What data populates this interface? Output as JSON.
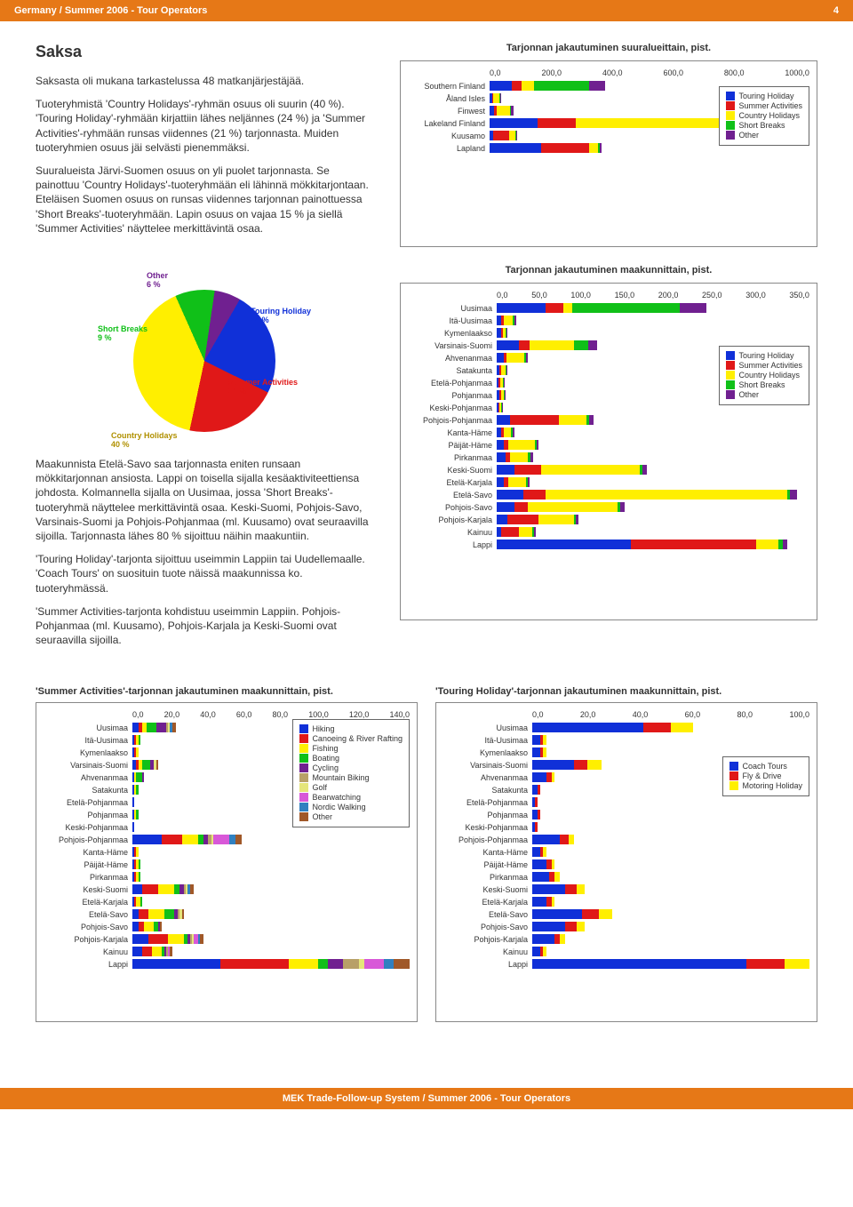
{
  "header": {
    "title": "Germany / Summer 2006 - Tour Operators",
    "page": "4"
  },
  "footer": {
    "text": "MEK Trade-Follow-up System / Summer 2006 - Tour Operators"
  },
  "colors": {
    "touring": "#1030d8",
    "summer": "#e01818",
    "country": "#ffef00",
    "short": "#10c018",
    "other": "#702090",
    "hiking": "#1030d8",
    "canoeing": "#e01818",
    "fishing": "#ffef00",
    "boating": "#10c018",
    "cycling": "#702090",
    "mountain": "#b8a068",
    "golf": "#e5e57a",
    "bear": "#d858d8",
    "nordic": "#3080c0",
    "other2": "#a05828",
    "coach": "#1030d8",
    "fly": "#e01818",
    "motoring": "#ffef00"
  },
  "saksa": {
    "title": "Saksa",
    "p1": "Saksasta oli mukana tarkastelussa 48 matkanjärjestäjää.",
    "p2": "Tuoteryhmistä 'Country Holidays'-ryhmän osuus oli suurin (40 %). 'Touring Holiday'-ryhmään kirjattiin lähes neljännes (24 %) ja 'Summer Activities'-ryhmään runsas viidennes (21 %) tarjonnasta. Muiden tuoteryhmien osuus jäi selvästi pienemmäksi.",
    "p3": "Suuralueista Järvi-Suomen osuus on yli puolet tarjonnasta. Se painottuu 'Country Holidays'-tuoteryhmään eli lähinnä mökkitarjontaan. Eteläisen Suomen osuus on runsas viidennes tarjonnan painottuessa 'Short Breaks'-tuoteryhmään. Lapin osuus on vajaa 15 % ja siellä 'Summer Activities' näyttelee merkittävintä osaa."
  },
  "pie": {
    "slices": [
      {
        "label": "Touring Holiday",
        "pct": "24 %",
        "color": "#1030d8"
      },
      {
        "label": "Summer Activities",
        "pct": "21 %",
        "color": "#e01818"
      },
      {
        "label": "Country Holidays",
        "pct": "40 %",
        "color": "#ffef00"
      },
      {
        "label": "Short Breaks",
        "pct": "9 %",
        "color": "#10c018"
      },
      {
        "label": "Other",
        "pct": "6 %",
        "color": "#702090"
      }
    ]
  },
  "body": {
    "p1": "Maakunnista Etelä-Savo saa tarjonnasta eniten runsaan mökkitarjonnan ansiosta. Lappi on toisella sijalla kesäaktiviteettiensa johdosta. Kolmannella sijalla on Uusimaa, jossa 'Short Breaks'-tuoteryhmä näyttelee merkittävintä osaa. Keski-Suomi, Pohjois-Savo, Varsinais-Suomi ja Pohjois-Pohjanmaa (ml. Kuusamo) ovat seuraavilla sijoilla. Tarjonnasta lähes 80 % sijoittuu näihin maakuntiin.",
    "p2": "'Touring Holiday'-tarjonta sijoittuu useimmin Lappiin tai Uudellemaalle. 'Coach Tours' on suosituin tuote näissä maakunnissa ko. tuoteryhmässä.",
    "p3": "'Summer Activities-tarjonta kohdistuu useimmin Lappiin. Pohjois-Pohjanmaa (ml. Kuusamo), Pohjois-Karjala ja Keski-Suomi ovat seuraavilla sijoilla."
  },
  "chart1": {
    "title": "Tarjonnan jakautuminen suuralueittain, pist.",
    "xmax": 1000,
    "ticks": [
      "0,0",
      "200,0",
      "400,0",
      "600,0",
      "800,0",
      "1000,0"
    ],
    "legend": [
      "Touring Holiday",
      "Summer Activities",
      "Country Holidays",
      "Short Breaks",
      "Other"
    ],
    "cats": [
      {
        "name": "Southern Finland",
        "v": [
          70,
          30,
          40,
          170,
          50
        ]
      },
      {
        "name": "Åland Isles",
        "v": [
          8,
          3,
          20,
          2,
          2
        ]
      },
      {
        "name": "Finwest",
        "v": [
          15,
          8,
          40,
          5,
          8
        ]
      },
      {
        "name": "Lakeland Finland",
        "v": [
          150,
          120,
          560,
          15,
          40
        ]
      },
      {
        "name": "Kuusamo",
        "v": [
          10,
          50,
          20,
          2,
          3
        ]
      },
      {
        "name": "Lapland",
        "v": [
          160,
          150,
          30,
          5,
          5
        ]
      }
    ]
  },
  "chart2": {
    "title": "Tarjonnan jakautuminen maakunnittain, pist.",
    "xmax": 350,
    "ticks": [
      "0,0",
      "50,0",
      "100,0",
      "150,0",
      "200,0",
      "250,0",
      "300,0",
      "350,0"
    ],
    "legend": [
      "Touring Holiday",
      "Summer Activities",
      "Country Holidays",
      "Short Breaks",
      "Other"
    ],
    "cats": [
      {
        "name": "Uusimaa",
        "v": [
          55,
          20,
          10,
          120,
          30
        ]
      },
      {
        "name": "Itä-Uusimaa",
        "v": [
          5,
          3,
          10,
          2,
          2
        ]
      },
      {
        "name": "Kymenlaakso",
        "v": [
          5,
          2,
          3,
          1,
          1
        ]
      },
      {
        "name": "Varsinais-Suomi",
        "v": [
          25,
          12,
          50,
          15,
          10
        ]
      },
      {
        "name": "Ahvenanmaa",
        "v": [
          8,
          3,
          20,
          2,
          2
        ]
      },
      {
        "name": "Satakunta",
        "v": [
          3,
          2,
          5,
          1,
          1
        ]
      },
      {
        "name": "Etelä-Pohjanmaa",
        "v": [
          2,
          2,
          3,
          1,
          1
        ]
      },
      {
        "name": "Pohjanmaa",
        "v": [
          3,
          2,
          3,
          1,
          1
        ]
      },
      {
        "name": "Keski-Pohjanmaa",
        "v": [
          2,
          1,
          2,
          1,
          1
        ]
      },
      {
        "name": "Pohjois-Pohjanmaa",
        "v": [
          15,
          55,
          30,
          3,
          5
        ]
      },
      {
        "name": "Kanta-Häme",
        "v": [
          5,
          3,
          8,
          2,
          2
        ]
      },
      {
        "name": "Päijät-Häme",
        "v": [
          8,
          5,
          30,
          2,
          2
        ]
      },
      {
        "name": "Pirkanmaa",
        "v": [
          10,
          5,
          20,
          3,
          3
        ]
      },
      {
        "name": "Keski-Suomi",
        "v": [
          20,
          30,
          110,
          3,
          5
        ]
      },
      {
        "name": "Etelä-Karjala",
        "v": [
          8,
          5,
          20,
          2,
          2
        ]
      },
      {
        "name": "Etelä-Savo",
        "v": [
          30,
          25,
          270,
          3,
          8
        ]
      },
      {
        "name": "Pohjois-Savo",
        "v": [
          20,
          15,
          100,
          3,
          5
        ]
      },
      {
        "name": "Pohjois-Karjala",
        "v": [
          12,
          35,
          40,
          2,
          3
        ]
      },
      {
        "name": "Kainuu",
        "v": [
          5,
          20,
          15,
          2,
          2
        ]
      },
      {
        "name": "Lappi",
        "v": [
          150,
          140,
          25,
          5,
          5
        ]
      }
    ]
  },
  "chart3": {
    "title": "'Summer Activities'-tarjonnan jakautuminen maakunnittain, pist.",
    "xmax": 140,
    "ticks": [
      "0,0",
      "20,0",
      "40,0",
      "60,0",
      "80,0",
      "100,0",
      "120,0",
      "140,0"
    ],
    "legend": [
      "Hiking",
      "Canoeing & River Rafting",
      "Fishing",
      "Boating",
      "Cycling",
      "Mountain Biking",
      "Golf",
      "Bearwatching",
      "Nordic Walking",
      "Other"
    ],
    "cats": [
      {
        "name": "Uusimaa",
        "v": [
          3,
          2,
          2,
          5,
          5,
          1,
          1,
          0,
          1,
          2
        ]
      },
      {
        "name": "Itä-Uusimaa",
        "v": [
          1,
          1,
          1,
          1,
          0,
          0,
          0,
          0,
          0,
          0
        ]
      },
      {
        "name": "Kymenlaakso",
        "v": [
          1,
          1,
          1,
          0,
          0,
          0,
          0,
          0,
          0,
          0
        ]
      },
      {
        "name": "Varsinais-Suomi",
        "v": [
          2,
          1,
          2,
          4,
          2,
          0,
          1,
          0,
          0,
          1
        ]
      },
      {
        "name": "Ahvenanmaa",
        "v": [
          1,
          0,
          1,
          3,
          1,
          0,
          0,
          0,
          0,
          0
        ]
      },
      {
        "name": "Satakunta",
        "v": [
          1,
          0,
          1,
          1,
          0,
          0,
          0,
          0,
          0,
          0
        ]
      },
      {
        "name": "Etelä-Pohjanmaa",
        "v": [
          1,
          0,
          0,
          0,
          0,
          0,
          0,
          0,
          0,
          0
        ]
      },
      {
        "name": "Pohjanmaa",
        "v": [
          1,
          0,
          1,
          1,
          0,
          0,
          0,
          0,
          0,
          0
        ]
      },
      {
        "name": "Keski-Pohjanmaa",
        "v": [
          1,
          0,
          0,
          0,
          0,
          0,
          0,
          0,
          0,
          0
        ]
      },
      {
        "name": "Pohjois-Pohjanmaa",
        "v": [
          15,
          10,
          8,
          3,
          2,
          2,
          1,
          8,
          3,
          3
        ]
      },
      {
        "name": "Kanta-Häme",
        "v": [
          1,
          1,
          1,
          0,
          0,
          0,
          0,
          0,
          0,
          0
        ]
      },
      {
        "name": "Päijät-Häme",
        "v": [
          1,
          1,
          1,
          1,
          0,
          0,
          0,
          0,
          0,
          0
        ]
      },
      {
        "name": "Pirkanmaa",
        "v": [
          1,
          1,
          1,
          1,
          0,
          0,
          0,
          0,
          0,
          0
        ]
      },
      {
        "name": "Keski-Suomi",
        "v": [
          5,
          8,
          8,
          3,
          2,
          1,
          1,
          0,
          1,
          2
        ]
      },
      {
        "name": "Etelä-Karjala",
        "v": [
          1,
          1,
          2,
          1,
          0,
          0,
          0,
          0,
          0,
          0
        ]
      },
      {
        "name": "Etelä-Savo",
        "v": [
          3,
          5,
          8,
          5,
          2,
          1,
          1,
          0,
          0,
          1
        ]
      },
      {
        "name": "Pohjois-Savo",
        "v": [
          3,
          3,
          5,
          2,
          1,
          0,
          0,
          0,
          0,
          1
        ]
      },
      {
        "name": "Pohjois-Karjala",
        "v": [
          8,
          10,
          8,
          2,
          1,
          1,
          1,
          2,
          1,
          2
        ]
      },
      {
        "name": "Kainuu",
        "v": [
          5,
          5,
          5,
          1,
          1,
          1,
          0,
          1,
          0,
          1
        ]
      },
      {
        "name": "Lappi",
        "v": [
          45,
          35,
          15,
          5,
          8,
          8,
          3,
          10,
          5,
          8
        ]
      }
    ]
  },
  "chart4": {
    "title": "'Touring Holiday'-tarjonnan jakautuminen maakunnittain, pist.",
    "xmax": 100,
    "ticks": [
      "0,0",
      "20,0",
      "40,0",
      "60,0",
      "80,0",
      "100,0"
    ],
    "legend": [
      "Coach Tours",
      "Fly & Drive",
      "Motoring Holiday"
    ],
    "cats": [
      {
        "name": "Uusimaa",
        "v": [
          40,
          10,
          8
        ]
      },
      {
        "name": "Itä-Uusimaa",
        "v": [
          3,
          1,
          1
        ]
      },
      {
        "name": "Kymenlaakso",
        "v": [
          3,
          1,
          1
        ]
      },
      {
        "name": "Varsinais-Suomi",
        "v": [
          15,
          5,
          5
        ]
      },
      {
        "name": "Ahvenanmaa",
        "v": [
          5,
          2,
          1
        ]
      },
      {
        "name": "Satakunta",
        "v": [
          2,
          1,
          0
        ]
      },
      {
        "name": "Etelä-Pohjanmaa",
        "v": [
          1,
          1,
          0
        ]
      },
      {
        "name": "Pohjanmaa",
        "v": [
          2,
          1,
          0
        ]
      },
      {
        "name": "Keski-Pohjanmaa",
        "v": [
          1,
          1,
          0
        ]
      },
      {
        "name": "Pohjois-Pohjanmaa",
        "v": [
          10,
          3,
          2
        ]
      },
      {
        "name": "Kanta-Häme",
        "v": [
          3,
          1,
          1
        ]
      },
      {
        "name": "Päijät-Häme",
        "v": [
          5,
          2,
          1
        ]
      },
      {
        "name": "Pirkanmaa",
        "v": [
          6,
          2,
          2
        ]
      },
      {
        "name": "Keski-Suomi",
        "v": [
          12,
          4,
          3
        ]
      },
      {
        "name": "Etelä-Karjala",
        "v": [
          5,
          2,
          1
        ]
      },
      {
        "name": "Etelä-Savo",
        "v": [
          18,
          6,
          5
        ]
      },
      {
        "name": "Pohjois-Savo",
        "v": [
          12,
          4,
          3
        ]
      },
      {
        "name": "Pohjois-Karjala",
        "v": [
          8,
          2,
          2
        ]
      },
      {
        "name": "Kainuu",
        "v": [
          3,
          1,
          1
        ]
      },
      {
        "name": "Lappi",
        "v": [
          85,
          15,
          10
        ]
      }
    ]
  }
}
